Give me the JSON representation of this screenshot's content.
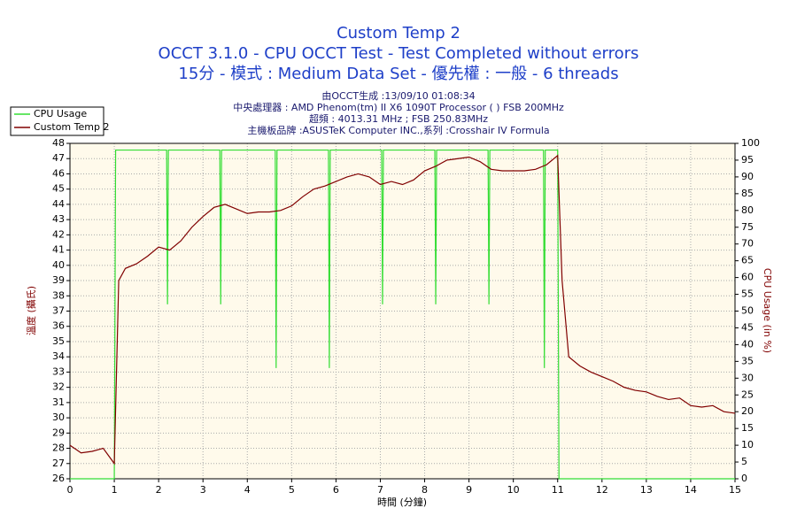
{
  "chart_data": {
    "type": "line",
    "title": "Custom Temp 2",
    "subtitle": "OCCT 3.1.0 - CPU OCCT Test - Test Completed without errors",
    "subtitle2": "15分 - 模式 : Medium Data Set - 優先權 : 一般 - 6 threads",
    "info": [
      "由OCCT生成 :13/09/10 01:08:34",
      "中央處理器 : AMD Phenom(tm) II X6 1090T Processor (  ) FSB 200MHz",
      "超頻 : 4013.31 MHz ; FSB 250.83MHz",
      "主機板品牌 :ASUSTeK Computer INC.,系列 :Crosshair IV Formula"
    ],
    "xlabel": "時間 (分鐘)",
    "ylabel": "溫度 (攝氏)",
    "y2label": "CPU Usage (in %)",
    "xlim": [
      0,
      15
    ],
    "xticks": [
      0,
      1,
      2,
      3,
      4,
      5,
      6,
      7,
      8,
      9,
      10,
      11,
      12,
      13,
      14,
      15
    ],
    "ylim": [
      26,
      48
    ],
    "yticks": [
      26,
      27,
      28,
      29,
      30,
      31,
      32,
      33,
      34,
      35,
      36,
      37,
      38,
      39,
      40,
      41,
      42,
      43,
      44,
      45,
      46,
      47,
      48
    ],
    "y2lim": [
      0,
      100
    ],
    "y2ticks": [
      0,
      5,
      10,
      15,
      20,
      25,
      30,
      35,
      40,
      45,
      50,
      55,
      60,
      65,
      70,
      75,
      80,
      85,
      90,
      95,
      100
    ],
    "grid": true,
    "legend": "top-left",
    "series": [
      {
        "name": "CPU Usage",
        "color": "#33dd33",
        "axis": "y2",
        "x": [
          0,
          1.0,
          1.03,
          2.18,
          2.2,
          2.22,
          3.38,
          3.4,
          3.42,
          4.63,
          4.65,
          4.67,
          5.83,
          5.85,
          5.87,
          7.03,
          7.05,
          7.07,
          8.23,
          8.25,
          8.27,
          9.43,
          9.45,
          9.47,
          10.68,
          10.7,
          10.72,
          11.0,
          11.03,
          15
        ],
        "values": [
          0,
          0,
          98,
          98,
          52,
          98,
          98,
          52,
          98,
          98,
          33,
          98,
          98,
          33,
          98,
          98,
          52,
          98,
          98,
          52,
          98,
          98,
          52,
          98,
          98,
          33,
          98,
          98,
          0,
          0
        ]
      },
      {
        "name": "Custom Temp 2",
        "color": "#800000",
        "x": [
          0,
          0.25,
          0.5,
          0.75,
          1.0,
          1.1,
          1.25,
          1.5,
          1.75,
          2.0,
          2.25,
          2.5,
          2.75,
          3.0,
          3.25,
          3.5,
          3.75,
          4.0,
          4.25,
          4.5,
          4.75,
          5.0,
          5.25,
          5.5,
          5.75,
          6.0,
          6.25,
          6.5,
          6.75,
          7.0,
          7.25,
          7.5,
          7.75,
          8.0,
          8.25,
          8.5,
          8.75,
          9.0,
          9.25,
          9.5,
          9.75,
          10.0,
          10.25,
          10.5,
          10.75,
          11.0,
          11.1,
          11.25,
          11.5,
          11.75,
          12.0,
          12.25,
          12.5,
          12.75,
          13.0,
          13.25,
          13.5,
          13.75,
          14.0,
          14.25,
          14.5,
          14.75,
          15.0
        ],
        "values": [
          28.2,
          27.7,
          27.8,
          28.0,
          27.0,
          39.0,
          39.8,
          40.1,
          40.6,
          41.2,
          41.0,
          41.6,
          42.5,
          43.2,
          43.8,
          44.0,
          43.7,
          43.4,
          43.5,
          43.5,
          43.6,
          43.9,
          44.5,
          45.0,
          45.2,
          45.5,
          45.8,
          46.0,
          45.8,
          45.3,
          45.5,
          45.3,
          45.6,
          46.2,
          46.5,
          46.9,
          47.0,
          47.1,
          46.8,
          46.3,
          46.2,
          46.2,
          46.2,
          46.3,
          46.6,
          47.2,
          39.0,
          34.0,
          33.4,
          33.0,
          32.7,
          32.4,
          32.0,
          31.8,
          31.7,
          31.4,
          31.2,
          31.3,
          30.8,
          30.7,
          30.8,
          30.4,
          30.3
        ]
      }
    ]
  }
}
